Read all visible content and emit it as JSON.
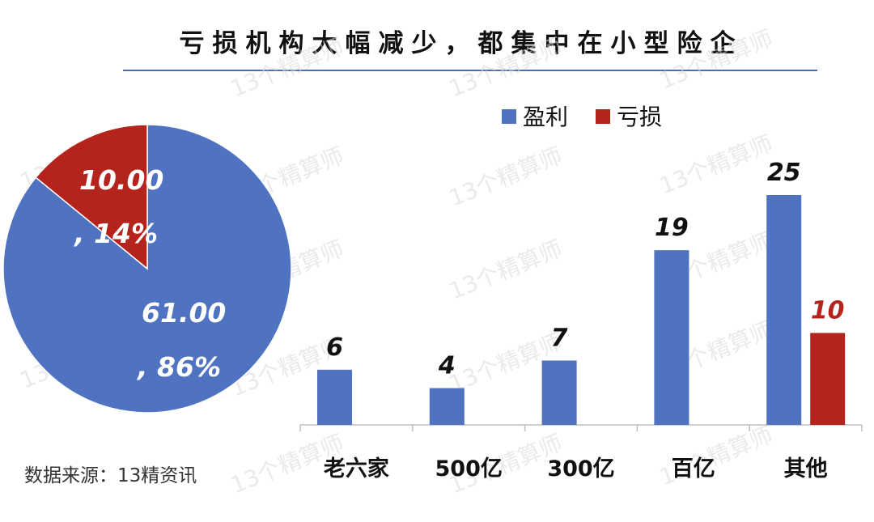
{
  "title": "亏损机构大幅减少，都集中在小型险企",
  "source": "数据来源：13精资讯",
  "watermark": "13个精算师",
  "colors": {
    "profit": "#4f72c1",
    "loss": "#b5241c",
    "axis": "#bfbfbf"
  },
  "chart_data": [
    {
      "type": "pie",
      "slices": [
        {
          "label": "盈利",
          "value": 61,
          "value_text": "61.00",
          "pct_text": ", 86%"
        },
        {
          "label": "亏损",
          "value": 10,
          "value_text": "10.00",
          "pct_text": ", 14%"
        }
      ]
    },
    {
      "type": "bar",
      "categories": [
        "老六家",
        "500亿",
        "300亿",
        "百亿",
        "其他"
      ],
      "series": [
        {
          "name": "盈利",
          "values": [
            6,
            4,
            7,
            19,
            25
          ]
        },
        {
          "name": "亏损",
          "values": [
            null,
            null,
            null,
            null,
            10
          ]
        }
      ],
      "legend": "top",
      "grid": false
    }
  ]
}
